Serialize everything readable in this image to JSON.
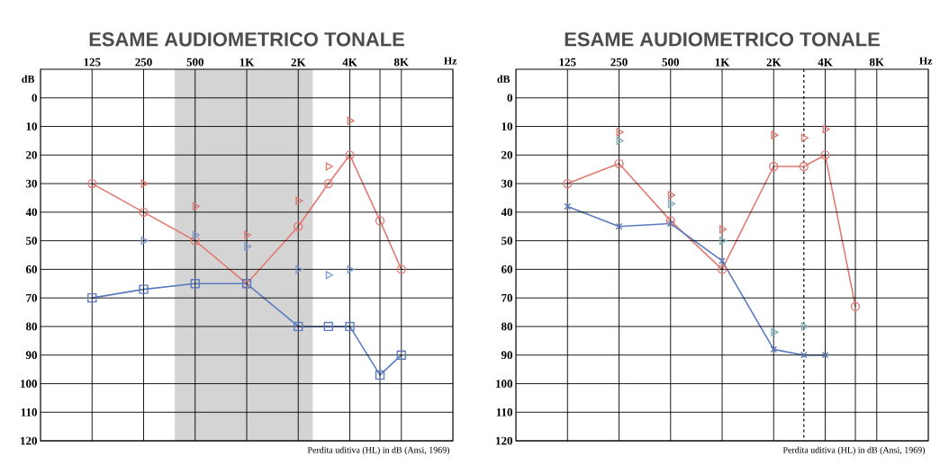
{
  "chart_data": [
    {
      "type": "line",
      "title": "ESAME AUDIOMETRICO TONALE",
      "xlabel": "Hz",
      "ylabel": "dB",
      "log": "x",
      "xlim": [
        62.5,
        16000
      ],
      "ylim": [
        120,
        -10
      ],
      "xticks": [
        125,
        250,
        500,
        {
          "value": 1000,
          "label": "1K"
        },
        {
          "value": 2000,
          "label": "2K"
        },
        {
          "value": 4000,
          "label": "4K"
        },
        {
          "value": 6000,
          "label": null
        },
        {
          "value": 8000,
          "label": "8K"
        }
      ],
      "yticks": [
        0,
        10,
        20,
        30,
        40,
        50,
        60,
        70,
        80,
        90,
        100,
        110,
        120
      ],
      "grid": true,
      "bands": [
        {
          "axis": "x",
          "from": 380,
          "to": 2430,
          "color": "#d4d4d4"
        }
      ],
      "annotations": [
        "Perdita uditiva (HL) in dB (Ansi, 1969)"
      ],
      "series": [
        {
          "type": "line",
          "color": "#e07a72",
          "marker": "circle",
          "x": [
            125,
            250,
            500,
            1000,
            2000,
            3000,
            4000,
            6000,
            8000
          ],
          "values": [
            30,
            40,
            50,
            65,
            45,
            30,
            20,
            43,
            60
          ]
        },
        {
          "type": "scatter",
          "color": "#e07a72",
          "marker": "triangle",
          "x": [
            250,
            500,
            1000,
            2000,
            3000,
            4000
          ],
          "values": [
            30,
            38,
            48,
            36,
            24,
            8
          ]
        },
        {
          "type": "line",
          "color": "#5b7bc0",
          "marker": "square",
          "x": [
            125,
            250,
            500,
            1000,
            2000,
            3000,
            4000,
            6000,
            8000
          ],
          "values": [
            70,
            67,
            65,
            65,
            80,
            80,
            80,
            97,
            90
          ]
        },
        {
          "type": "scatter",
          "color": "#7d9bd0",
          "marker": "triangle",
          "x": [
            250,
            500,
            1000,
            2000,
            3000,
            4000
          ],
          "values": [
            50,
            48,
            52,
            60,
            62,
            60
          ]
        }
      ]
    },
    {
      "type": "line",
      "title": "ESAME AUDIOMETRICO TONALE",
      "xlabel": "Hz",
      "ylabel": "dB",
      "log": "x",
      "xlim": [
        62.5,
        16000
      ],
      "ylim": [
        120,
        -10
      ],
      "xticks": [
        125,
        250,
        500,
        {
          "value": 1000,
          "label": "1K"
        },
        {
          "value": 2000,
          "label": "2K"
        },
        {
          "value": 4000,
          "label": "4K"
        },
        {
          "value": 6000,
          "label": null
        },
        {
          "value": 8000,
          "label": "8K"
        }
      ],
      "yticks": [
        0,
        10,
        20,
        30,
        40,
        50,
        60,
        70,
        80,
        90,
        100,
        110,
        120
      ],
      "grid": true,
      "ref_lines": [
        {
          "axis": "x",
          "value": 3000,
          "line_style": "dashed",
          "color": "#333333"
        }
      ],
      "annotations": [
        "Perdita uditiva (HL) in dB (Ansi, 1969)"
      ],
      "series": [
        {
          "type": "line",
          "color": "#e07a72",
          "marker": "circle",
          "x": [
            125,
            250,
            500,
            1000,
            2000,
            3000,
            4000,
            6000
          ],
          "values": [
            30,
            23,
            43,
            60,
            24,
            24,
            20,
            73
          ]
        },
        {
          "type": "scatter",
          "color": "#e07a72",
          "marker": "triangle",
          "x": [
            250,
            500,
            1000,
            2000,
            3000,
            4000
          ],
          "values": [
            12,
            34,
            46,
            13,
            14,
            11
          ]
        },
        {
          "type": "line",
          "color": "#5b7bc0",
          "marker": "cross",
          "x": [
            125,
            250,
            500,
            1000,
            2000,
            3000,
            4000
          ],
          "values": [
            38,
            45,
            44,
            57,
            88,
            90,
            90
          ]
        },
        {
          "type": "scatter",
          "color": "#7fb0b8",
          "marker": "triangle",
          "x": [
            250,
            500,
            1000,
            2000,
            3000
          ],
          "values": [
            15,
            37,
            50,
            82,
            80
          ]
        }
      ]
    }
  ]
}
